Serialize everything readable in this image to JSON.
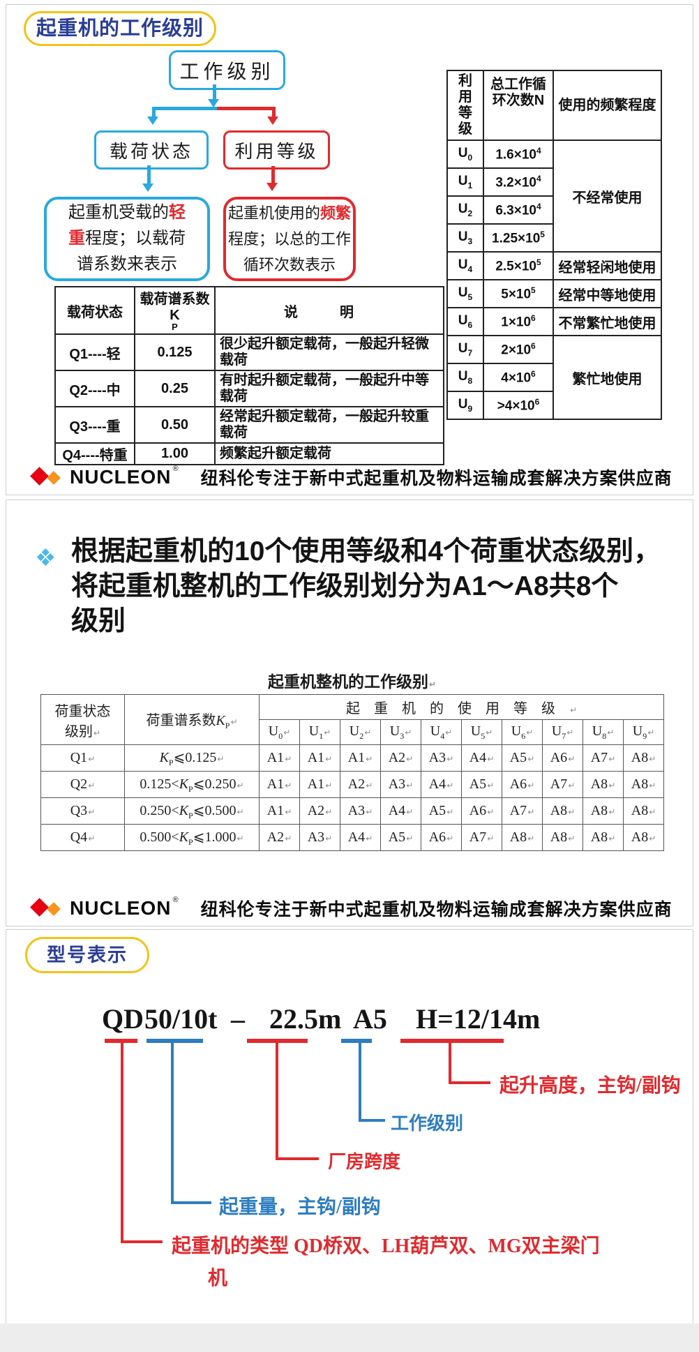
{
  "colors": {
    "accent_red": "#e02a2e",
    "accent_blue": "#2d7dc0",
    "flow_blue": "#29a8e0",
    "title_blue": "#2b3e96",
    "pill_yellow": "#f2c318",
    "logo_red": "#e60012",
    "logo_orange": "#f7941d"
  },
  "slide1": {
    "title": "起重机的工作级别",
    "flow": {
      "root": "工作级别",
      "load_node": "载荷状态",
      "usage_node": "利用等级",
      "load_desc": {
        "pre": "起重机受载的",
        "em": "轻重",
        "post": "程度；以载荷谱系数来表示"
      },
      "usage_desc": {
        "pre": "起重机使用的",
        "em": "频繁",
        "post": "程度；以总的工作循环次数表示"
      }
    },
    "load_table": {
      "col1": "载荷状态",
      "col2_main": "载荷谱系数K",
      "col2_sub": "P",
      "col3": "说明",
      "rows": [
        {
          "state": "Q1----轻",
          "k": "0.125",
          "desc": "很少起升额定载荷，一般起升轻微载荷"
        },
        {
          "state": "Q2----中",
          "k": "0.25",
          "desc": "有时起升额定载荷，一般起升中等载荷"
        },
        {
          "state": "Q3----重",
          "k": "0.50",
          "desc": "经常起升额定载荷，一般起升较重载荷"
        },
        {
          "state": "Q4----特重",
          "k": "1.00",
          "desc": "频繁起升额定载荷"
        }
      ]
    },
    "usage_table": {
      "h_level": "利用等级",
      "h_cycles": "总工作循环次数N",
      "h_freq": "使用的频繁程度",
      "rows": [
        {
          "level": "U0",
          "cycles": "1.6×10",
          "exp": "4"
        },
        {
          "level": "U1",
          "cycles": "3.2×10",
          "exp": "4"
        },
        {
          "level": "U2",
          "cycles": "6.3×10",
          "exp": "4"
        },
        {
          "level": "U3",
          "cycles": "1.25×10",
          "exp": "5"
        },
        {
          "level": "U4",
          "cycles": "2.5×10",
          "exp": "5"
        },
        {
          "level": "U5",
          "cycles": "5×10",
          "exp": "5"
        },
        {
          "level": "U6",
          "cycles": "1×10",
          "exp": "6"
        },
        {
          "level": "U7",
          "cycles": "2×10",
          "exp": "6"
        },
        {
          "level": "U8",
          "cycles": "4×10",
          "exp": "6"
        },
        {
          "level": "U9",
          "cycles": ">4×10",
          "exp": "6"
        }
      ],
      "freq_groups": [
        {
          "label": "不经常使用",
          "span": 4
        },
        {
          "label": "经常轻闲地使用",
          "span": 1
        },
        {
          "label": "经常中等地使用",
          "span": 1
        },
        {
          "label": "不常繁忙地使用",
          "span": 1
        },
        {
          "label": "繁忙地使用",
          "span": 3
        }
      ]
    }
  },
  "footer": {
    "brand": "NUCLEON",
    "reg": "®",
    "tagline": "纽科伦专注于新中式起重机及物料运输成套解决方案供应商"
  },
  "slide2": {
    "bullet_lines": [
      "根据起重机的10个使用等级和4个荷重状态级别，",
      "将起重机整机的工作级别划分为A1～A8共8个",
      "级别"
    ],
    "table_title": "起重机整机的工作级别",
    "work_table": {
      "mark": "↵",
      "h_state_lines": [
        "荷重状态",
        "级别"
      ],
      "h_k_main": "荷重谱系数",
      "h_k_var": "K",
      "h_k_sub": "P",
      "h_usage": "起重机的使用等级",
      "u_cols": [
        "U0",
        "U1",
        "U2",
        "U3",
        "U4",
        "U5",
        "U6",
        "U7",
        "U8",
        "U9"
      ],
      "rows": [
        {
          "q": "Q1",
          "k_before": "",
          "k_after": "⩽0.125",
          "levels": [
            "A1",
            "A1",
            "A1",
            "A2",
            "A3",
            "A4",
            "A5",
            "A6",
            "A7",
            "A8"
          ]
        },
        {
          "q": "Q2",
          "k_before": "0.125<",
          "k_after": "⩽0.250",
          "levels": [
            "A1",
            "A1",
            "A2",
            "A3",
            "A4",
            "A5",
            "A6",
            "A7",
            "A8",
            "A8"
          ]
        },
        {
          "q": "Q3",
          "k_before": "0.250<",
          "k_after": "⩽0.500",
          "levels": [
            "A1",
            "A2",
            "A3",
            "A4",
            "A5",
            "A6",
            "A7",
            "A8",
            "A8",
            "A8"
          ]
        },
        {
          "q": "Q4",
          "k_before": "0.500<",
          "k_after": "⩽1.000",
          "levels": [
            "A2",
            "A3",
            "A4",
            "A5",
            "A6",
            "A7",
            "A8",
            "A8",
            "A8",
            "A8"
          ]
        }
      ]
    }
  },
  "slide3": {
    "title": "型号表示",
    "model": [
      {
        "text": "QD",
        "underline": "red"
      },
      {
        "text": "50/10t",
        "underline": "blue"
      },
      {
        "text": "–",
        "underline": ""
      },
      {
        "text": "22.5m",
        "underline": "red"
      },
      {
        "text": "A5",
        "underline": "blue"
      },
      {
        "text": "H=12/14m",
        "underline": "red"
      }
    ],
    "callouts": [
      {
        "color": "red",
        "lines": [
          "起升高度，主钩/副钩"
        ]
      },
      {
        "color": "blue",
        "lines": [
          "工作级别"
        ]
      },
      {
        "color": "red",
        "lines": [
          "厂房跨度"
        ]
      },
      {
        "color": "blue",
        "lines": [
          "起重量，主钩/副钩"
        ]
      },
      {
        "color": "red",
        "lines": [
          "起重机的类型 QD桥双、LH葫芦双、MG双主梁门",
          "机"
        ]
      }
    ]
  }
}
